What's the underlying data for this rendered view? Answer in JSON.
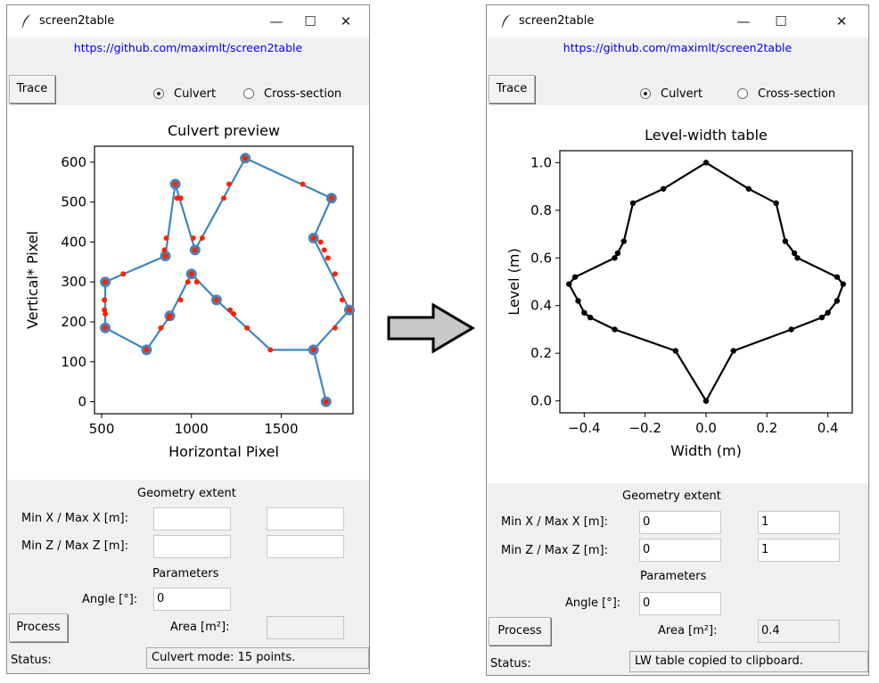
{
  "left_window": {
    "title": "screen2table",
    "link": "https://github.com/maximlt/screen2table",
    "trace_label": "Trace",
    "radio_culvert": "Culvert",
    "radio_cross": "Cross-section",
    "selected_mode": "Culvert",
    "geometry_heading": "Geometry extent",
    "minmax_x_label": "Min X / Max X [m]:",
    "minmax_z_label": "Min Z / Max Z [m]:",
    "min_x": "",
    "max_x": "",
    "min_z": "",
    "max_z": "",
    "parameters_heading": "Parameters",
    "angle_label": "Angle [°]:",
    "angle_value": "0",
    "process_label": "Process",
    "area_label": "Area [m²]:",
    "area_value": "",
    "status_label": "Status:",
    "status_text": "Culvert mode: 15 points."
  },
  "right_window": {
    "title": "screen2table",
    "link": "https://github.com/maximlt/screen2table",
    "trace_label": "Trace",
    "radio_culvert": "Culvert",
    "radio_cross": "Cross-section",
    "selected_mode": "Culvert",
    "geometry_heading": "Geometry extent",
    "minmax_x_label": "Min X / Max X [m]:",
    "minmax_z_label": "Min Z / Max Z [m]:",
    "min_x": "0",
    "max_x": "1",
    "min_z": "0",
    "max_z": "1",
    "parameters_heading": "Parameters",
    "angle_label": "Angle [°]:",
    "angle_value": "0",
    "process_label": "Process",
    "area_label": "Area [m²]:",
    "area_value": "0.4",
    "status_label": "Status:",
    "status_text": "LW table copied to clipboard."
  },
  "arrow_icon": "right-arrow-icon",
  "chart_data": [
    {
      "type": "line",
      "title": "Culvert preview",
      "xlabel": "Horizontal Pixel",
      "ylabel": "Vertical* Pixel",
      "xlim": [
        460,
        1900
      ],
      "ylim": [
        -30,
        640
      ],
      "xticks": [
        500,
        1000,
        1500
      ],
      "yticks": [
        0,
        100,
        200,
        300,
        400,
        500,
        600
      ],
      "line_color": "#3b86c0",
      "vertex_color": "#4a83b9",
      "sample_color": "#ff2200",
      "series": [
        {
          "name": "outline",
          "points": [
            [
              1750,
              0
            ],
            [
              1680,
              130
            ],
            [
              1880,
              230
            ],
            [
              1680,
              410
            ],
            [
              1780,
              510
            ],
            [
              1300,
              610
            ],
            [
              1020,
              380
            ],
            [
              910,
              545
            ],
            [
              855,
              365
            ],
            [
              520,
              300
            ],
            [
              520,
              185
            ],
            [
              750,
              130
            ],
            [
              880,
              215
            ],
            [
              1000,
              320
            ],
            [
              1140,
              255
            ],
            [
              1440,
              130
            ],
            [
              1680,
              130
            ]
          ]
        }
      ],
      "vertices": [
        [
          1750,
          0
        ],
        [
          1680,
          130
        ],
        [
          1880,
          230
        ],
        [
          1680,
          410
        ],
        [
          1780,
          510
        ],
        [
          1300,
          610
        ],
        [
          1020,
          380
        ],
        [
          910,
          545
        ],
        [
          855,
          365
        ],
        [
          520,
          300
        ],
        [
          520,
          185
        ],
        [
          750,
          130
        ],
        [
          880,
          215
        ],
        [
          1000,
          320
        ],
        [
          1140,
          255
        ]
      ],
      "samples": [
        [
          1750,
          0
        ],
        [
          1680,
          130
        ],
        [
          1800,
          185
        ],
        [
          1840,
          255
        ],
        [
          1800,
          320
        ],
        [
          1760,
          360
        ],
        [
          1740,
          380
        ],
        [
          1720,
          400
        ],
        [
          1880,
          230
        ],
        [
          1680,
          410
        ],
        [
          1780,
          510
        ],
        [
          1620,
          545
        ],
        [
          1300,
          610
        ],
        [
          1210,
          545
        ],
        [
          1180,
          510
        ],
        [
          1060,
          410
        ],
        [
          1020,
          380
        ],
        [
          920,
          510
        ],
        [
          940,
          510
        ],
        [
          1010,
          410
        ],
        [
          910,
          545
        ],
        [
          860,
          410
        ],
        [
          850,
          380
        ],
        [
          855,
          365
        ],
        [
          620,
          320
        ],
        [
          520,
          300
        ],
        [
          515,
          255
        ],
        [
          515,
          230
        ],
        [
          520,
          220
        ],
        [
          520,
          185
        ],
        [
          750,
          130
        ],
        [
          830,
          185
        ],
        [
          875,
          210
        ],
        [
          880,
          215
        ],
        [
          940,
          255
        ],
        [
          980,
          300
        ],
        [
          1000,
          320
        ],
        [
          1030,
          300
        ],
        [
          1140,
          255
        ],
        [
          1215,
          230
        ],
        [
          1235,
          220
        ],
        [
          1310,
          185
        ],
        [
          1440,
          130
        ]
      ]
    },
    {
      "type": "line",
      "title": "Level-width table",
      "xlabel": "Width (m)",
      "ylabel": "Level (m)",
      "xlim": [
        -0.48,
        0.48
      ],
      "ylim": [
        -0.05,
        1.05
      ],
      "xticks": [
        -0.4,
        -0.2,
        0.0,
        0.2,
        0.4
      ],
      "xtick_labels": [
        "−0.4",
        "−0.2",
        "0.0",
        "0.2",
        "0.4"
      ],
      "yticks": [
        0.0,
        0.2,
        0.4,
        0.6,
        0.8,
        1.0
      ],
      "ytick_labels": [
        "0.0",
        "0.2",
        "0.4",
        "0.6",
        "0.8",
        "1.0"
      ],
      "line_color": "#000000",
      "series": [
        {
          "name": "width-level",
          "points": [
            [
              0,
              0
            ],
            [
              0.09,
              0.21
            ],
            [
              0.28,
              0.3
            ],
            [
              0.38,
              0.35
            ],
            [
              0.4,
              0.37
            ],
            [
              0.43,
              0.42
            ],
            [
              0.45,
              0.49
            ],
            [
              0.43,
              0.52
            ],
            [
              0.3,
              0.6
            ],
            [
              0.29,
              0.62
            ],
            [
              0.26,
              0.67
            ],
            [
              0.23,
              0.83
            ],
            [
              0.14,
              0.89
            ],
            [
              0,
              1.0
            ],
            [
              -0.14,
              0.89
            ],
            [
              -0.24,
              0.83
            ],
            [
              -0.27,
              0.67
            ],
            [
              -0.29,
              0.62
            ],
            [
              -0.3,
              0.6
            ],
            [
              -0.43,
              0.52
            ],
            [
              -0.45,
              0.49
            ],
            [
              -0.42,
              0.42
            ],
            [
              -0.4,
              0.37
            ],
            [
              -0.38,
              0.35
            ],
            [
              -0.3,
              0.3
            ],
            [
              -0.1,
              0.21
            ],
            [
              0,
              0
            ]
          ]
        }
      ]
    }
  ]
}
